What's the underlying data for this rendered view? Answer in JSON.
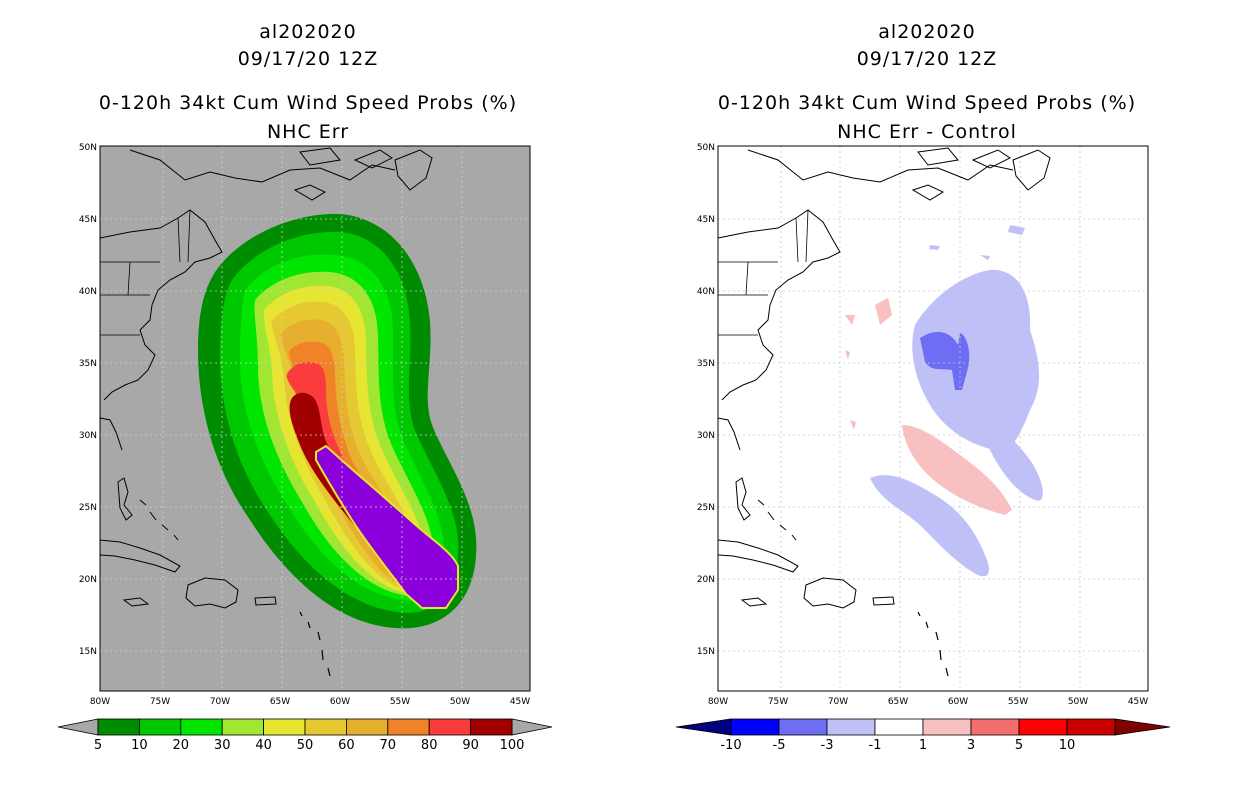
{
  "left_panel": {
    "storm_id": "al202020",
    "datetime": "09/17/20 12Z",
    "product": "0-120h 34kt Cum Wind Speed Probs (%)",
    "subtitle": "NHC Err",
    "colorbar_labels": [
      "5",
      "10",
      "20",
      "30",
      "40",
      "50",
      "60",
      "70",
      "80",
      "90",
      "100"
    ],
    "colorbar_colors": [
      "#008C00",
      "#00C800",
      "#00E600",
      "#A0E632",
      "#E6E632",
      "#E6C832",
      "#E6AF2D",
      "#F08228",
      "#FA3C3C",
      "#A00000",
      "#8C00DC"
    ]
  },
  "right_panel": {
    "storm_id": "al202020",
    "datetime": "09/17/20 12Z",
    "product": "0-120h 34kt Cum Wind Speed Probs (%)",
    "subtitle": "NHC Err - Control",
    "colorbar_labels": [
      "-10",
      "-5",
      "-3",
      "-1",
      "1",
      "3",
      "5",
      "10"
    ],
    "colorbar_colors": [
      "#0000C8",
      "#0000FF",
      "#6E6EF5",
      "#C0C0F8",
      "#FFFFFF",
      "#F8C0C0",
      "#F56E6E",
      "#FF0000",
      "#C80000"
    ]
  },
  "lat_labels": [
    "50N",
    "45N",
    "40N",
    "35N",
    "30N",
    "25N",
    "20N",
    "15N"
  ],
  "lon_labels": [
    "80W",
    "75W",
    "70W",
    "65W",
    "60W",
    "55W",
    "50W",
    "45W"
  ],
  "colors": {
    "land_bg": "#A8A8A8",
    "coast": "#000000"
  }
}
